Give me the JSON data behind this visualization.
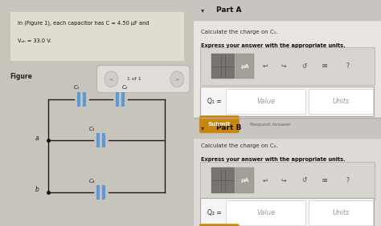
{
  "left_bg": "#c8c4bc",
  "left_panel_bg": "#e8e5de",
  "right_bg": "#d0cdc8",
  "right_section_bg": "#e8e5e0",
  "right_section_b_bg": "#dedad5",
  "problem_box_bg": "#e0ddd0",
  "problem_box_edge": "#c8c4aa",
  "problem_text_line1": "In (Figure 1), each capacitor has C = 4.50 μF and",
  "problem_text_line2": "Vₐₕ = 33.0 V.",
  "figure_label": "Figure",
  "nav_text": "1 of 1",
  "part_a_title": "Part A",
  "part_a_question_pre": "Calculate the charge on ",
  "part_a_question_sub": "C₁",
  "part_a_instruction": "Express your answer with the appropriate units.",
  "part_a_q_label": "Q₁ =",
  "part_a_value": "Value",
  "part_a_units": "Units",
  "part_b_title": "Part B",
  "part_b_question_pre": "Calculate the charge on ",
  "part_b_question_sub": "C₂",
  "part_b_instruction": "Express your answer with the appropriate units.",
  "part_b_q_label": "Q₂ =",
  "part_b_value": "Value",
  "part_b_units": "Units",
  "submit_color": "#c8860a",
  "submit_text": "Submit",
  "request_answer_text": "Request Answer",
  "toolbar_bg": "#c8c4c0",
  "toolbar_icon_bg": "#888480",
  "toolbar_ua_bg": "#a0a098",
  "capacitor_color": "#5b9bd5",
  "circuit_line_color": "#1a1a1a",
  "cap_labels": [
    "C₁",
    "C₂",
    "C₃",
    "C₄"
  ],
  "node_a_label": "a",
  "node_b_label": "b",
  "white": "#ffffff",
  "input_bg": "#f5f5f5",
  "divider_color": "#b0aca8"
}
